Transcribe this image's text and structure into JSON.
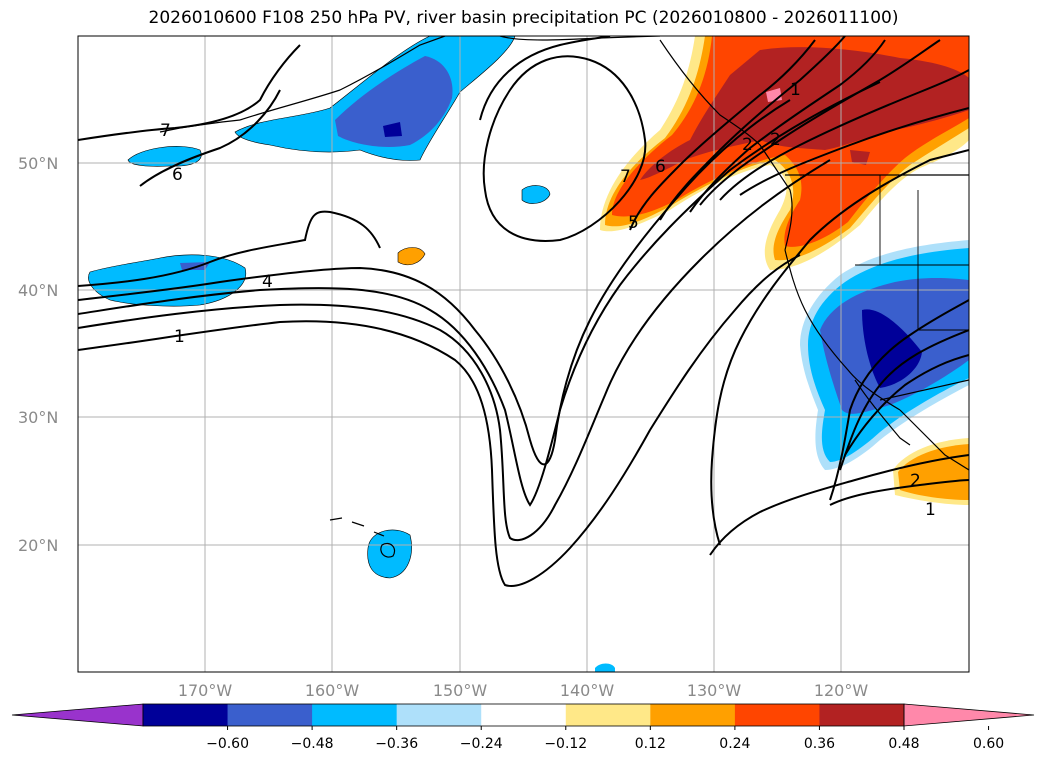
{
  "title": "2026010600 F108 250 hPa PV, river basin precipitation PC (2026010800 - 2026011100)",
  "latitude_labels": [
    "50°N",
    "40°N",
    "30°N",
    "20°N"
  ],
  "longitude_labels": [
    "170°W",
    "160°W",
    "150°W",
    "140°W",
    "130°W",
    "120°W"
  ],
  "contour_labels": [
    "7",
    "6",
    "4",
    "1",
    "7",
    "6",
    "5",
    "2",
    "2",
    "1",
    "2",
    "1"
  ],
  "colorbar": {
    "tick_labels": [
      "−0.60",
      "−0.48",
      "−0.36",
      "−0.24",
      "−0.12",
      "0.12",
      "0.24",
      "0.36",
      "0.48",
      "0.60"
    ],
    "colors": [
      "#9933cc",
      "#000099",
      "#3a5fcd",
      "#00bbff",
      "#aee0fa",
      "#ffffff",
      "#ffe888",
      "#ffa000",
      "#ff4500",
      "#b22222",
      "#ff88aa"
    ]
  },
  "chart_data": {
    "type": "map",
    "title": "2026010600 F108 250 hPa PV, river basin precipitation PC (2026010800 - 2026011100)",
    "fields": [
      "250 hPa PV (contours)",
      "river basin precipitation PC (shaded)"
    ],
    "colorbar_levels": [
      -0.6,
      -0.48,
      -0.36,
      -0.24,
      -0.12,
      0.12,
      0.24,
      0.36,
      0.48,
      0.6
    ],
    "lat_range": [
      10,
      60
    ],
    "lon_range": [
      -180,
      -110
    ],
    "grid": true
  }
}
